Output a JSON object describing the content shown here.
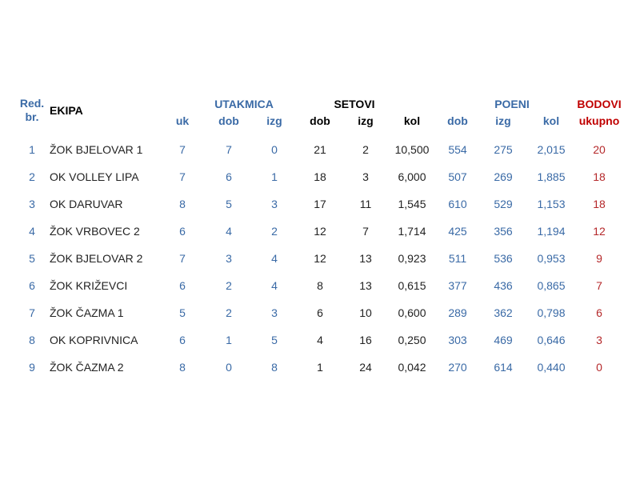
{
  "headers": {
    "rank_line1": "Red.",
    "rank_line2": "br.",
    "team": "EKIPA",
    "matches_group": "UTAKMICA",
    "sets_group": "SETOVI",
    "points_group": "POENI",
    "standing_group": "BODOVI",
    "matches_total": "uk",
    "matches_won": "dob",
    "matches_lost": "izg",
    "sets_won": "dob",
    "sets_lost": "izg",
    "sets_ratio": "kol",
    "points_won": "dob",
    "points_lost": "izg",
    "points_ratio": "kol",
    "standing_total": "ukupno"
  },
  "colors": {
    "blue": "#3a6aa6",
    "red": "#c00000",
    "dark": "#222222"
  },
  "rows": [
    {
      "rank": "1",
      "team": "ŽOK BJELOVAR 1",
      "uk": "7",
      "mw": "7",
      "ml": "0",
      "sw": "21",
      "sl": "2",
      "sr": "10,500",
      "pw": "554",
      "pl": "275",
      "pr": "2,015",
      "pts": "20"
    },
    {
      "rank": "2",
      "team": "OK VOLLEY LIPA",
      "uk": "7",
      "mw": "6",
      "ml": "1",
      "sw": "18",
      "sl": "3",
      "sr": "6,000",
      "pw": "507",
      "pl": "269",
      "pr": "1,885",
      "pts": "18"
    },
    {
      "rank": "3",
      "team": "OK DARUVAR",
      "uk": "8",
      "mw": "5",
      "ml": "3",
      "sw": "17",
      "sl": "11",
      "sr": "1,545",
      "pw": "610",
      "pl": "529",
      "pr": "1,153",
      "pts": "18"
    },
    {
      "rank": "4",
      "team": "ŽOK VRBOVEC 2",
      "uk": "6",
      "mw": "4",
      "ml": "2",
      "sw": "12",
      "sl": "7",
      "sr": "1,714",
      "pw": "425",
      "pl": "356",
      "pr": "1,194",
      "pts": "12"
    },
    {
      "rank": "5",
      "team": "ŽOK BJELOVAR 2",
      "uk": "7",
      "mw": "3",
      "ml": "4",
      "sw": "12",
      "sl": "13",
      "sr": "0,923",
      "pw": "511",
      "pl": "536",
      "pr": "0,953",
      "pts": "9"
    },
    {
      "rank": "6",
      "team": "ŽOK KRIŽEVCI",
      "uk": "6",
      "mw": "2",
      "ml": "4",
      "sw": "8",
      "sl": "13",
      "sr": "0,615",
      "pw": "377",
      "pl": "436",
      "pr": "0,865",
      "pts": "7"
    },
    {
      "rank": "7",
      "team": "ŽOK ČAZMA 1",
      "uk": "5",
      "mw": "2",
      "ml": "3",
      "sw": "6",
      "sl": "10",
      "sr": "0,600",
      "pw": "289",
      "pl": "362",
      "pr": "0,798",
      "pts": "6"
    },
    {
      "rank": "8",
      "team": "OK KOPRIVNICA",
      "uk": "6",
      "mw": "1",
      "ml": "5",
      "sw": "4",
      "sl": "16",
      "sr": "0,250",
      "pw": "303",
      "pl": "469",
      "pr": "0,646",
      "pts": "3"
    },
    {
      "rank": "9",
      "team": "ŽOK ČAZMA 2",
      "uk": "8",
      "mw": "0",
      "ml": "8",
      "sw": "1",
      "sl": "24",
      "sr": "0,042",
      "pw": "270",
      "pl": "614",
      "pr": "0,440",
      "pts": "0"
    }
  ]
}
